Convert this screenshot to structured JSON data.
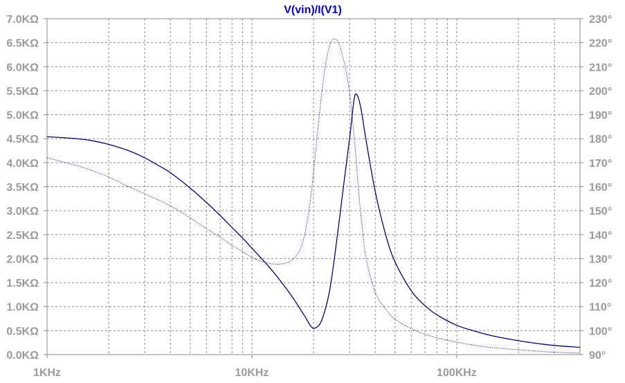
{
  "chart_data": {
    "type": "line",
    "title": "V(vin)/I(V1)",
    "xscale": "log",
    "xlim": [
      1000,
      400000
    ],
    "x_ticks": [
      {
        "value": 1000,
        "label": "1KHz"
      },
      {
        "value": 10000,
        "label": "10KHz"
      },
      {
        "value": 100000,
        "label": "100KHz"
      }
    ],
    "y_left": {
      "ylim": [
        0,
        7000
      ],
      "tick_labels": [
        "0.0KΩ",
        "0.5KΩ",
        "1.0KΩ",
        "1.5KΩ",
        "2.0KΩ",
        "2.5KΩ",
        "3.0KΩ",
        "3.5KΩ",
        "4.0KΩ",
        "4.5KΩ",
        "5.0KΩ",
        "5.5KΩ",
        "6.0KΩ",
        "6.5KΩ",
        "7.0KΩ"
      ]
    },
    "y_right": {
      "ylim": [
        90,
        230
      ],
      "tick_labels": [
        "90°",
        "100°",
        "110°",
        "120°",
        "130°",
        "140°",
        "150°",
        "160°",
        "170°",
        "180°",
        "190°",
        "200°",
        "210°",
        "220°",
        "230°"
      ]
    },
    "grid": true,
    "series": [
      {
        "axis": "left",
        "style": "solid",
        "color": "#000080",
        "x": [
          1000,
          1300,
          1600,
          2000,
          2500,
          3000,
          3500,
          4000,
          5000,
          6000,
          7000,
          8000,
          9000,
          10000,
          12000,
          14000,
          16000,
          18000,
          19500,
          20500,
          22000,
          24000,
          26000,
          28000,
          30000,
          31500,
          32500,
          34000,
          36000,
          40000,
          45000,
          50000,
          60000,
          70000,
          80000,
          100000,
          120000,
          150000,
          200000,
          250000,
          300000,
          400000
        ],
        "y": [
          4540,
          4510,
          4470,
          4380,
          4250,
          4100,
          3940,
          3790,
          3470,
          3170,
          2900,
          2650,
          2430,
          2220,
          1850,
          1500,
          1160,
          820,
          580,
          560,
          730,
          1350,
          2400,
          3500,
          4500,
          5300,
          5420,
          5150,
          4500,
          3400,
          2500,
          1930,
          1330,
          1020,
          830,
          610,
          500,
          390,
          290,
          230,
          190,
          150
        ]
      },
      {
        "axis": "right",
        "style": "dotted",
        "color": "#000080",
        "x": [
          1000,
          1500,
          2000,
          2500,
          3000,
          4000,
          5000,
          6000,
          7000,
          8000,
          9000,
          10000,
          11000,
          12000,
          13000,
          14000,
          15000,
          16000,
          17000,
          18000,
          19000,
          20000,
          21000,
          22000,
          23000,
          24000,
          25000,
          26000,
          27000,
          28000,
          29000,
          30000,
          31000,
          32000,
          33000,
          34000,
          36000,
          40000,
          45000,
          50000,
          60000,
          70000,
          80000,
          100000,
          120000,
          150000,
          200000,
          250000,
          300000,
          400000
        ],
        "y": [
          172,
          168,
          164,
          160,
          157,
          152,
          147,
          142.5,
          139,
          135.5,
          133,
          130.5,
          129,
          128.1,
          127.7,
          127.8,
          128.4,
          130,
          133,
          139,
          150,
          166,
          184,
          200,
          212,
          219,
          221.5,
          221,
          218,
          213,
          207,
          199,
          188,
          175,
          161,
          149,
          131,
          116,
          109,
          104.7,
          100.8,
          98.5,
          97,
          95.2,
          94,
          92.9,
          92,
          91.4,
          91,
          90.6
        ]
      }
    ]
  }
}
